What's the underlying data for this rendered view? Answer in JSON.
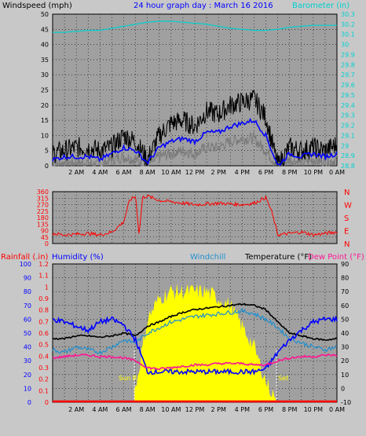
{
  "header": {
    "windspeed_label": "Windspeed (mph)",
    "title": "24 hour graph day : March 16 2016",
    "barometer_label": "Barometer (in)"
  },
  "colors": {
    "background": "#c8c8c8",
    "plot_bg": "#a0a0a0",
    "wind_gust": "#000000",
    "wind_avg": "#0000ff",
    "wind_low": "#7a7a7a",
    "barometer": "#00d0d0",
    "direction": "#ff0000",
    "temperature": "#000000",
    "humidity": "#0000ff",
    "windchill": "#1f8fcf",
    "dewpoint": "#ff1493",
    "rainfall": "#ff0000",
    "solar": "#ffff00",
    "sun_line": "#ffffff"
  },
  "x_labels": [
    "2 AM",
    "4 AM",
    "6 AM",
    "8 AM",
    "10 AM",
    "12 PM",
    "2 PM",
    "4 PM",
    "6 PM",
    "8 PM",
    "10 PM",
    "0 AM"
  ],
  "sun": {
    "rise_label": "Sun R",
    "set_label": "Set",
    "rise_hour": 6.9,
    "set_hour": 18.9
  },
  "chart_data": [
    {
      "id": "wind-chart",
      "type": "line",
      "title": "24 hour graph day : March 16 2016",
      "ylabel": "Windspeed (mph)",
      "y2label": "Barometer (in)",
      "xlim": [
        0,
        24
      ],
      "ylim": [
        0,
        50
      ],
      "y2lim": [
        28.8,
        30.3
      ],
      "y_ticks": [
        "0",
        "5",
        "10",
        "15",
        "20",
        "25",
        "30",
        "35",
        "40",
        "45",
        "50"
      ],
      "y2_ticks": [
        "28.8",
        "28.9",
        "29",
        "29.1",
        "29.2",
        "29.3",
        "29.4",
        "29.5",
        "29.6",
        "29.7",
        "29.8",
        "29.9",
        "30",
        "30.1",
        "30.2",
        "30.3"
      ],
      "grid": true,
      "x": [
        0,
        1,
        2,
        3,
        4,
        5,
        6,
        7,
        8,
        9,
        10,
        11,
        12,
        13,
        14,
        15,
        16,
        17,
        18,
        19,
        20,
        21,
        22,
        23,
        24
      ],
      "series": [
        {
          "name": "Gust",
          "values": [
            4,
            5,
            6,
            6,
            5,
            6,
            10,
            8,
            2,
            10,
            14,
            15,
            13,
            18,
            17,
            20,
            21,
            22,
            16,
            0,
            6,
            5,
            6,
            5,
            7
          ]
        },
        {
          "name": "Average",
          "values": [
            2,
            3,
            3,
            3,
            2,
            4,
            6,
            5,
            1,
            6,
            8,
            9,
            8,
            11,
            11,
            13,
            14,
            15,
            10,
            0,
            4,
            3,
            4,
            3,
            4
          ]
        },
        {
          "name": "Low",
          "values": [
            0,
            1,
            1,
            1,
            0,
            2,
            3,
            2,
            0,
            3,
            4,
            5,
            4,
            6,
            6,
            8,
            9,
            9,
            5,
            0,
            2,
            1,
            2,
            1,
            2
          ]
        },
        {
          "name": "Barometer",
          "values": [
            30.12,
            30.12,
            30.13,
            30.14,
            30.14,
            30.16,
            30.18,
            30.2,
            30.22,
            30.23,
            30.23,
            30.22,
            30.21,
            30.2,
            30.18,
            30.16,
            30.15,
            30.14,
            30.14,
            30.15,
            30.17,
            30.18,
            30.19,
            30.19,
            30.19
          ]
        }
      ]
    },
    {
      "id": "direction-chart",
      "type": "line",
      "ylim": [
        0,
        360
      ],
      "y_ticks": [
        "0",
        "45",
        "90",
        "135",
        "180",
        "225",
        "270",
        "315",
        "360"
      ],
      "compass": [
        "N",
        "W",
        "S",
        "E",
        "N"
      ],
      "grid": true,
      "x": [
        0,
        1,
        2,
        3,
        4,
        5,
        6,
        6.5,
        7,
        7.3,
        7.6,
        8,
        9,
        10,
        11,
        12,
        13,
        14,
        15,
        16,
        17,
        18,
        18.5,
        19,
        20,
        21,
        22,
        23,
        24
      ],
      "series": [
        {
          "name": "Direction",
          "values": [
            70,
            60,
            65,
            70,
            60,
            80,
            150,
            300,
            330,
            60,
            320,
            330,
            300,
            290,
            280,
            270,
            275,
            280,
            275,
            270,
            280,
            320,
            220,
            60,
            70,
            80,
            60,
            70,
            80
          ]
        }
      ]
    },
    {
      "id": "temp-chart",
      "type": "line",
      "ylim": [
        -10,
        90
      ],
      "y_ticks": [
        "-10",
        "0",
        "10",
        "20",
        "30",
        "40",
        "50",
        "60",
        "70",
        "80",
        "90"
      ],
      "humidity_ticks": [
        "0",
        "10",
        "20",
        "30",
        "40",
        "50",
        "60",
        "70",
        "80",
        "90",
        "100"
      ],
      "rain_ticks": [
        "0",
        "0.1",
        "0.2",
        "0.3",
        "0.4",
        "0.5",
        "0.6",
        "0.7",
        "0.8",
        "0.9",
        "1",
        "1.1",
        "1.2"
      ],
      "labels": {
        "rainfall": "Rainfall (.in)",
        "humidity": "Humidity (%)",
        "windchill": "Windchill",
        "temperature": "Temperature (°F)",
        "dewpoint": "Dew Point (°F)"
      },
      "grid": true,
      "x": [
        0,
        1,
        2,
        3,
        4,
        5,
        6,
        7,
        8,
        9,
        10,
        11,
        12,
        13,
        14,
        15,
        16,
        17,
        18,
        19,
        20,
        21,
        22,
        23,
        24
      ],
      "series": [
        {
          "name": "Temperature",
          "values": [
            36,
            36,
            38,
            38,
            37,
            38,
            40,
            38,
            45,
            48,
            52,
            55,
            57,
            58,
            59,
            60,
            61,
            60,
            57,
            48,
            40,
            38,
            36,
            35,
            36
          ]
        },
        {
          "name": "Humidity",
          "values": [
            60,
            58,
            55,
            52,
            58,
            60,
            56,
            45,
            22,
            22,
            22,
            22,
            22,
            22,
            22,
            22,
            22,
            22,
            24,
            36,
            45,
            52,
            58,
            60,
            60
          ]
        },
        {
          "name": "Windchill",
          "values": [
            28,
            26,
            30,
            28,
            26,
            30,
            35,
            33,
            40,
            44,
            48,
            50,
            52,
            53,
            54,
            55,
            56,
            54,
            50,
            44,
            36,
            33,
            30,
            28,
            30
          ]
        },
        {
          "name": "Dew Point",
          "values": [
            22,
            23,
            24,
            24,
            23,
            23,
            22,
            20,
            15,
            14,
            15,
            16,
            17,
            17,
            18,
            18,
            18,
            17,
            17,
            20,
            22,
            23,
            23,
            24,
            24
          ]
        },
        {
          "name": "Rainfall",
          "values": [
            0,
            0,
            0,
            0,
            0,
            0,
            0,
            0,
            0,
            0,
            0,
            0,
            0,
            0,
            0,
            0,
            0,
            0,
            0,
            0,
            0,
            0,
            0,
            0,
            0
          ]
        },
        {
          "name": "Solar",
          "values": [
            0,
            0,
            0,
            0,
            0,
            0,
            0,
            0.1,
            0.6,
            0.75,
            0.8,
            0.8,
            0.8,
            0.8,
            0.75,
            0.7,
            0.55,
            0.4,
            0.15,
            0,
            0,
            0,
            0,
            0,
            0
          ]
        }
      ]
    }
  ]
}
